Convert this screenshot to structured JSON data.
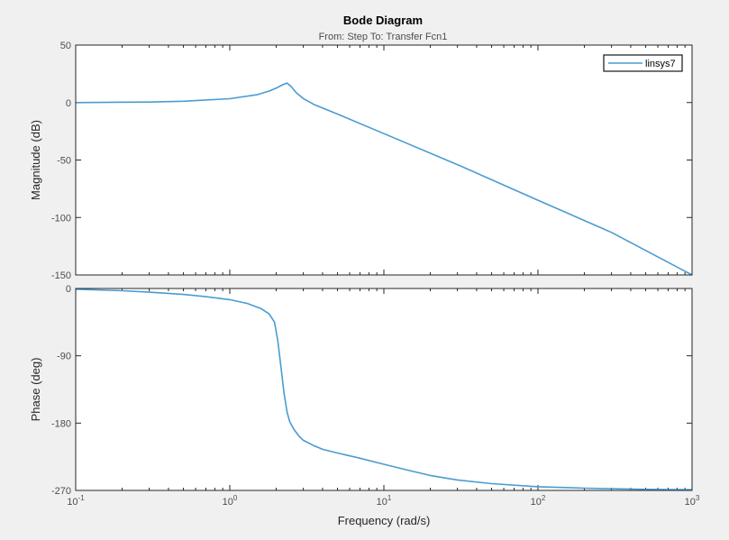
{
  "chart_data": {
    "type": "line",
    "title": "Bode Diagram",
    "subtitle": "From: Step  To: Transfer Fcn1",
    "xlabel": "Frequency  (rad/s)",
    "xscale": "log",
    "xlim": [
      0.1,
      1000
    ],
    "x_ticks": [
      {
        "base": "10",
        "exp": "-1"
      },
      {
        "base": "10",
        "exp": "0"
      },
      {
        "base": "10",
        "exp": "1"
      },
      {
        "base": "10",
        "exp": "2"
      },
      {
        "base": "10",
        "exp": "3"
      }
    ],
    "legend": {
      "entries": [
        "linsys7"
      ],
      "location": "top-right"
    },
    "grid": false,
    "colors": {
      "line": "#4a9bd2",
      "axes_bg": "#ffffff",
      "figure_bg": "#f0f0f0"
    },
    "panels": [
      {
        "name": "magnitude",
        "ylabel": "Magnitude (dB)",
        "ylim": [
          -150,
          50
        ],
        "yticks": [
          "50",
          "0",
          "-50",
          "-100",
          "-150"
        ],
        "series": [
          {
            "name": "linsys7",
            "x": [
              0.1,
              0.3,
              0.5,
              1.0,
              1.5,
              1.8,
              2.0,
              2.2,
              2.35,
              2.5,
              2.7,
              3.0,
              3.5,
              5,
              10,
              30,
              100,
              300,
              1000
            ],
            "y": [
              0,
              0.4,
              1.1,
              3.3,
              6.8,
              10,
              12.5,
              15.5,
              17,
              14,
              8.5,
              3.5,
              -1.5,
              -10,
              -27,
              -54,
              -85,
              -113,
              -150
            ]
          }
        ]
      },
      {
        "name": "phase",
        "ylabel": "Phase (deg)",
        "ylim": [
          -270,
          0
        ],
        "yticks": [
          "0",
          "-90",
          "-180",
          "-270"
        ],
        "series": [
          {
            "name": "linsys7",
            "x": [
              0.1,
              0.2,
              0.3,
              0.5,
              0.7,
              1.0,
              1.3,
              1.6,
              1.8,
              1.95,
              2.05,
              2.15,
              2.25,
              2.35,
              2.45,
              2.6,
              2.8,
              3.0,
              3.5,
              4,
              5,
              7,
              10,
              15,
              20,
              30,
              50,
              100,
              200,
              500,
              1000
            ],
            "y": [
              -1,
              -3,
              -5,
              -8,
              -11,
              -15,
              -20,
              -27,
              -34,
              -45,
              -70,
              -105,
              -140,
              -165,
              -178,
              -188,
              -197,
              -203,
              -210,
              -215,
              -220,
              -227,
              -235,
              -244,
              -250,
              -256,
              -261,
              -265,
              -267,
              -268.5,
              -269
            ]
          }
        ]
      }
    ]
  }
}
